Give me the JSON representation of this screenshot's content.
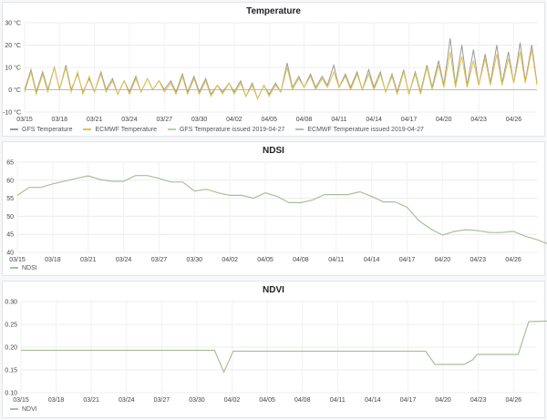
{
  "colors": {
    "gfs": "#9a9a9a",
    "ecmwf": "#e1c24a",
    "gfs_issued": "#b5d6a7",
    "ecmwf_issued": "#b0b8c8",
    "ndsi": "#a8c09a",
    "ndvi": "#a8c09a",
    "zero": "#bbbbbb"
  },
  "chart_data": [
    {
      "type": "line",
      "title": "Temperature",
      "x": [
        "03/15",
        "03/18",
        "03/21",
        "03/24",
        "03/27",
        "03/30",
        "04/02",
        "04/05",
        "04/08",
        "04/11",
        "04/14",
        "04/17",
        "04/20",
        "04/23",
        "04/26"
      ],
      "xlim": [
        0,
        44
      ],
      "yticks": [
        "30 °C",
        "20 °C",
        "10 °C",
        "0 °C",
        "-10 °C"
      ],
      "ylim": [
        -10,
        30
      ],
      "grid": true,
      "legend_position": "bottom-left",
      "series": [
        {
          "name": "GFS Temperature",
          "daily_low": [
            0,
            -1,
            0,
            0,
            0,
            -1,
            -1,
            0,
            -2,
            -1,
            -1,
            0,
            0,
            -1,
            -1,
            -1,
            -2,
            -1,
            -1,
            -3,
            -4,
            -2,
            -1,
            1,
            1,
            1,
            2,
            1,
            1,
            0,
            1,
            -1,
            -1,
            -2,
            -1,
            1,
            2,
            2,
            2,
            2,
            3,
            3,
            3,
            4,
            3
          ],
          "daily_high": [
            9,
            8,
            10,
            11,
            7,
            5,
            8,
            5,
            4,
            6,
            5,
            4,
            4,
            7,
            6,
            5,
            2,
            3,
            4,
            3,
            2,
            3,
            12,
            6,
            7,
            6,
            11,
            7,
            8,
            9,
            8,
            7,
            9,
            8,
            11,
            13,
            23,
            20,
            18,
            16,
            20,
            17,
            21,
            20,
            18
          ]
        },
        {
          "name": "ECMWF Temperature",
          "daily_low": [
            -1,
            -2,
            -1,
            0,
            -1,
            -2,
            -1,
            -1,
            -2,
            -2,
            -1,
            0,
            -1,
            -2,
            -2,
            -2,
            -3,
            -2,
            -2,
            -3,
            -4,
            -3,
            -1,
            0,
            1,
            0,
            1,
            1,
            0,
            0,
            0,
            -1,
            -2,
            -2,
            -2,
            0,
            1,
            1,
            1,
            2,
            2,
            2,
            3,
            3,
            2
          ],
          "daily_high": [
            8,
            7,
            10,
            10,
            8,
            6,
            7,
            4,
            4,
            5,
            5,
            4,
            3,
            6,
            5,
            4,
            2,
            3,
            3,
            2,
            2,
            2,
            10,
            5,
            6,
            5,
            8,
            6,
            7,
            7,
            7,
            6,
            8,
            7,
            10,
            11,
            17,
            15,
            13,
            14,
            16,
            14,
            17,
            18,
            16
          ]
        },
        {
          "name": "GFS Temperature issued 2019-04-27",
          "daily_low": [],
          "daily_high": []
        },
        {
          "name": "ECMWF Temperature issued 2019-04-27",
          "daily_low": [],
          "daily_high": []
        }
      ]
    },
    {
      "type": "line",
      "title": "NDSI",
      "x": [
        "03/15",
        "03/18",
        "03/21",
        "03/24",
        "03/27",
        "03/30",
        "04/02",
        "04/05",
        "04/08",
        "04/11",
        "04/14",
        "04/17",
        "04/20",
        "04/23",
        "04/26"
      ],
      "xlim": [
        0,
        44
      ],
      "yticks": [
        "65",
        "60",
        "55",
        "50",
        "45",
        "40"
      ],
      "ylim": [
        40,
        65
      ],
      "grid": true,
      "legend_position": "bottom-left",
      "series": [
        {
          "name": "NDSI",
          "points": [
            [
              0,
              55.8
            ],
            [
              1,
              58
            ],
            [
              2,
              58
            ],
            [
              3,
              59
            ],
            [
              5,
              60.5
            ],
            [
              6,
              61.2
            ],
            [
              7,
              60.2
            ],
            [
              8,
              59.7
            ],
            [
              9,
              59.7
            ],
            [
              10,
              61.3
            ],
            [
              11,
              61.3
            ],
            [
              12,
              60.5
            ],
            [
              13,
              59.5
            ],
            [
              14,
              59.5
            ],
            [
              15,
              57
            ],
            [
              16,
              57.5
            ],
            [
              17,
              56.5
            ],
            [
              18,
              55.8
            ],
            [
              19,
              55.8
            ],
            [
              20,
              55
            ],
            [
              21,
              56.5
            ],
            [
              22,
              55.5
            ],
            [
              23,
              53.8
            ],
            [
              24,
              53.8
            ],
            [
              25,
              54.5
            ],
            [
              26,
              56
            ],
            [
              27,
              56
            ],
            [
              28,
              56
            ],
            [
              29,
              56.8
            ],
            [
              30,
              55.5
            ],
            [
              31,
              54
            ],
            [
              32,
              54
            ],
            [
              33,
              52.5
            ],
            [
              34,
              48.8
            ],
            [
              35,
              46.5
            ],
            [
              36,
              44.8
            ],
            [
              37,
              45.8
            ],
            [
              38,
              46.3
            ],
            [
              39,
              46
            ],
            [
              40,
              45.5
            ],
            [
              41,
              45.5
            ],
            [
              42,
              45.8
            ],
            [
              43,
              44.5
            ],
            [
              44,
              43.5
            ],
            [
              45,
              42.2
            ],
            [
              46,
              41.5
            ]
          ]
        }
      ]
    },
    {
      "type": "line",
      "title": "NDVI",
      "x": [
        "03/15",
        "03/18",
        "03/21",
        "03/24",
        "03/27",
        "03/30",
        "04/02",
        "04/05",
        "04/08",
        "04/11",
        "04/14",
        "04/17",
        "04/20",
        "04/23",
        "04/26"
      ],
      "xlim": [
        0,
        44
      ],
      "yticks": [
        "0.30",
        "0.25",
        "0.20",
        "0.15",
        "0.10"
      ],
      "ylim": [
        0.1,
        0.3
      ],
      "grid": true,
      "legend_position": "bottom-left",
      "series": [
        {
          "name": "NDVI",
          "points": [
            [
              0,
              0.193
            ],
            [
              16.5,
              0.193
            ],
            [
              17.3,
              0.145
            ],
            [
              18.1,
              0.191
            ],
            [
              34.5,
              0.191
            ],
            [
              35.3,
              0.162
            ],
            [
              37.8,
              0.162
            ],
            [
              38.5,
              0.172
            ],
            [
              38.9,
              0.184
            ],
            [
              42.4,
              0.184
            ],
            [
              43.3,
              0.256
            ],
            [
              44.7,
              0.257
            ],
            [
              46.5,
              0.257
            ]
          ]
        }
      ]
    }
  ]
}
